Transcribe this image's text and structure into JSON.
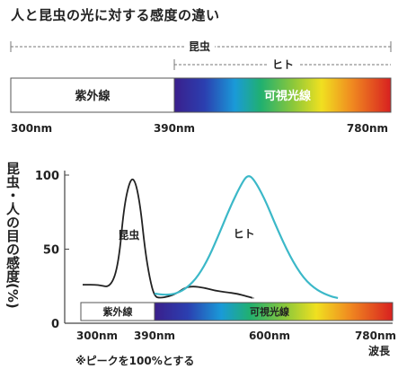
{
  "title": "人と昆虫の光に対する感度の違い",
  "top_panel": {
    "insect_range_label": "昆虫",
    "human_range_label": "ヒト",
    "uv_label": "紫外線",
    "visible_label": "可視光線",
    "ticks": [
      "300nm",
      "390nm",
      "780nm"
    ]
  },
  "chart_data": {
    "type": "line",
    "ylabel": "昆虫・人の目の感度(%)",
    "xlabel": "波長",
    "x_tick_labels": [
      "300nm",
      "390nm",
      "600nm",
      "780nm"
    ],
    "y_ticks": [
      0,
      50,
      100
    ],
    "ylim": [
      0,
      100
    ],
    "xlim": [
      300,
      780
    ],
    "grid": false,
    "footnote": "※ピークを100%とする",
    "band": {
      "uv_label": "紫外線",
      "visible_label": "可視光線"
    },
    "series": [
      {
        "name": "昆虫",
        "color": "#222222",
        "points": [
          [
            300,
            26
          ],
          [
            320,
            26
          ],
          [
            335,
            24
          ],
          [
            345,
            40
          ],
          [
            352,
            80
          ],
          [
            360,
            98
          ],
          [
            366,
            96
          ],
          [
            372,
            80
          ],
          [
            378,
            50
          ],
          [
            384,
            30
          ],
          [
            390,
            18
          ],
          [
            400,
            17
          ],
          [
            415,
            18
          ],
          [
            430,
            20
          ],
          [
            445,
            24
          ],
          [
            460,
            25
          ],
          [
            480,
            24
          ],
          [
            500,
            22
          ],
          [
            520,
            21
          ],
          [
            540,
            20
          ],
          [
            560,
            18
          ],
          [
            570,
            17
          ]
        ]
      },
      {
        "name": "ヒト",
        "color": "#3bb8c8",
        "points": [
          [
            390,
            20
          ],
          [
            410,
            19
          ],
          [
            430,
            20
          ],
          [
            450,
            24
          ],
          [
            470,
            32
          ],
          [
            490,
            45
          ],
          [
            510,
            62
          ],
          [
            530,
            80
          ],
          [
            550,
            95
          ],
          [
            560,
            100
          ],
          [
            570,
            98
          ],
          [
            590,
            85
          ],
          [
            610,
            65
          ],
          [
            630,
            45
          ],
          [
            650,
            30
          ],
          [
            670,
            22
          ],
          [
            690,
            18
          ],
          [
            700,
            17
          ]
        ]
      }
    ]
  }
}
